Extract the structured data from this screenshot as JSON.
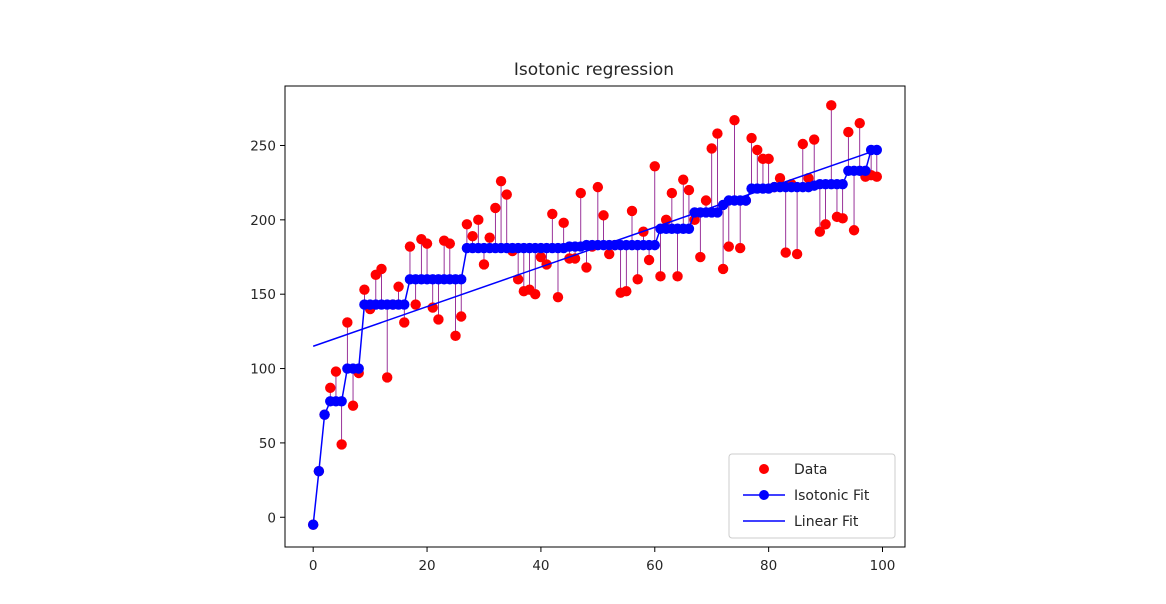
{
  "chart_data": {
    "type": "scatter",
    "title": "Isotonic regression",
    "xlabel": "",
    "ylabel": "",
    "xlim": [
      -4.95,
      103.95
    ],
    "ylim": [
      -20,
      290
    ],
    "x_ticks": [
      "0",
      "20",
      "40",
      "60",
      "80",
      "100"
    ],
    "x_tick_values": [
      0,
      20,
      40,
      60,
      80,
      100
    ],
    "y_ticks": [
      "0",
      "50",
      "100",
      "150",
      "200",
      "250"
    ],
    "y_tick_values": [
      0,
      50,
      100,
      150,
      200,
      250
    ],
    "grid": false,
    "legend_position": "lower right",
    "colors": {
      "data": "#ff0000",
      "isotonic": "#0000ff",
      "linear": "#0000ff",
      "segments": "#800080",
      "axes": "#000000"
    },
    "series": [
      {
        "name": "Data",
        "kind": "points",
        "x": [
          0,
          1,
          2,
          3,
          4,
          5,
          6,
          7,
          8,
          9,
          10,
          11,
          12,
          13,
          14,
          15,
          16,
          17,
          18,
          19,
          20,
          21,
          22,
          23,
          24,
          25,
          26,
          27,
          28,
          29,
          30,
          31,
          32,
          33,
          34,
          35,
          36,
          37,
          38,
          39,
          40,
          41,
          42,
          43,
          44,
          45,
          46,
          47,
          48,
          49,
          50,
          51,
          52,
          53,
          54,
          55,
          56,
          57,
          58,
          59,
          60,
          61,
          62,
          63,
          64,
          65,
          66,
          67,
          68,
          69,
          70,
          71,
          72,
          73,
          74,
          75,
          76,
          77,
          78,
          79,
          80,
          81,
          82,
          83,
          84,
          85,
          86,
          87,
          88,
          89,
          90,
          91,
          92,
          93,
          94,
          95,
          96,
          97,
          98,
          99
        ],
        "y": [
          -5,
          31,
          69,
          87,
          98,
          49,
          131,
          75,
          97,
          153,
          140,
          163,
          167,
          94,
          143,
          155,
          131,
          182,
          143,
          187,
          184,
          141,
          133,
          186,
          184,
          122,
          135,
          197,
          189,
          200,
          170,
          188,
          208,
          226,
          217,
          179,
          160,
          152,
          153,
          150,
          175,
          170,
          204,
          148,
          198,
          174,
          174,
          218,
          168,
          182,
          222,
          203,
          177,
          183,
          151,
          152,
          206,
          160,
          192,
          173,
          236,
          162,
          200,
          218,
          162,
          227,
          220,
          200,
          175,
          213,
          248,
          258,
          167,
          182,
          267,
          181,
          213,
          255,
          247,
          241,
          241,
          222,
          228,
          178,
          224,
          177,
          251,
          228,
          254,
          192,
          197,
          277,
          202,
          201,
          259,
          193,
          265,
          229,
          230,
          229
        ]
      },
      {
        "name": "Isotonic Fit",
        "kind": "line-markers",
        "x": [
          0,
          1,
          2,
          3,
          4,
          5,
          6,
          7,
          8,
          9,
          10,
          11,
          12,
          13,
          14,
          15,
          16,
          17,
          18,
          19,
          20,
          21,
          22,
          23,
          24,
          25,
          26,
          27,
          28,
          29,
          30,
          31,
          32,
          33,
          34,
          35,
          36,
          37,
          38,
          39,
          40,
          41,
          42,
          43,
          44,
          45,
          46,
          47,
          48,
          49,
          50,
          51,
          52,
          53,
          54,
          55,
          56,
          57,
          58,
          59,
          60,
          61,
          62,
          63,
          64,
          65,
          66,
          67,
          68,
          69,
          70,
          71,
          72,
          73,
          74,
          75,
          76,
          77,
          78,
          79,
          80,
          81,
          82,
          83,
          84,
          85,
          86,
          87,
          88,
          89,
          90,
          91,
          92,
          93,
          94,
          95,
          96,
          97,
          98,
          99
        ],
        "y": [
          -5,
          31,
          69,
          78,
          78,
          78,
          100,
          100,
          100,
          143,
          143,
          143,
          143,
          143,
          143,
          143,
          143,
          160,
          160,
          160,
          160,
          160,
          160,
          160,
          160,
          160,
          160,
          181,
          181,
          181,
          181,
          181,
          181,
          181,
          181,
          181,
          181,
          181,
          181,
          181,
          181,
          181,
          181,
          181,
          181,
          182,
          182,
          182,
          183,
          183,
          183,
          183,
          183,
          183,
          183,
          183,
          183,
          183,
          183,
          183,
          183,
          194,
          194,
          194,
          194,
          194,
          194,
          205,
          205,
          205,
          205,
          205,
          210,
          213,
          213,
          213,
          213,
          221,
          221,
          221,
          221,
          222,
          222,
          222,
          222,
          222,
          222,
          222,
          223,
          224,
          224,
          224,
          224,
          224,
          233,
          233,
          233,
          233,
          247,
          247
        ]
      },
      {
        "name": "Linear Fit",
        "kind": "line",
        "x": [
          0,
          99
        ],
        "y": [
          115,
          247
        ]
      }
    ]
  }
}
